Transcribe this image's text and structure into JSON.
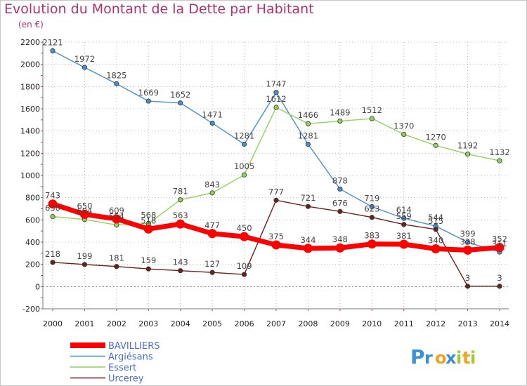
{
  "chart_data": {
    "type": "line",
    "title": "Evolution du Montant de la Dette par Habitant",
    "subtitle": "(en €)",
    "xlabel": "",
    "ylabel": "",
    "ylim": [
      -200,
      2200
    ],
    "yticks": [
      -200,
      0,
      200,
      400,
      600,
      800,
      1000,
      1200,
      1400,
      1600,
      1800,
      2000,
      2200
    ],
    "x": [
      "2000",
      "2001",
      "2002",
      "2003",
      "2004",
      "2005",
      "2006",
      "2007",
      "2008",
      "2009",
      "2010",
      "2011",
      "2012",
      "2013",
      "2014"
    ],
    "grid": true,
    "legend_position": "bottom-left",
    "series": [
      {
        "name": "Argiésans",
        "color": "#4a8fcf",
        "values": [
          2121,
          1972,
          1825,
          1669,
          1652,
          1471,
          1281,
          1747,
          1281,
          878,
          719,
          614,
          544,
          399,
          311
        ]
      },
      {
        "name": "Essert",
        "color": "#8fd35a",
        "values": [
          630,
          604,
          554,
          568,
          781,
          843,
          1005,
          1612,
          1466,
          1489,
          1512,
          1370,
          1270,
          1192,
          1132
        ]
      },
      {
        "name": "Urcerey",
        "color": "#6b2020",
        "values": [
          218,
          199,
          181,
          159,
          143,
          127,
          109,
          777,
          721,
          676,
          623,
          559,
          515,
          3,
          3
        ]
      },
      {
        "name": "BAVILLIERS",
        "color": "#ff0000",
        "values": [
          743,
          650,
          609,
          518,
          563,
          477,
          450,
          375,
          344,
          348,
          383,
          381,
          340,
          328,
          352
        ]
      }
    ],
    "legend_order": [
      "BAVILLIERS",
      "Argiésans",
      "Essert",
      "Urcerey"
    ]
  },
  "brand": {
    "letters": [
      {
        "ch": "P",
        "color": "#3a8fd8"
      },
      {
        "ch": "r",
        "color": "#3a8fd8"
      },
      {
        "ch": "o",
        "color": "#f0a020"
      },
      {
        "ch": "x",
        "color": "#3a8fd8"
      },
      {
        "ch": "i",
        "color": "#9acd32"
      },
      {
        "ch": "t",
        "color": "#f0a020"
      },
      {
        "ch": "i",
        "color": "#9acd32"
      }
    ]
  }
}
